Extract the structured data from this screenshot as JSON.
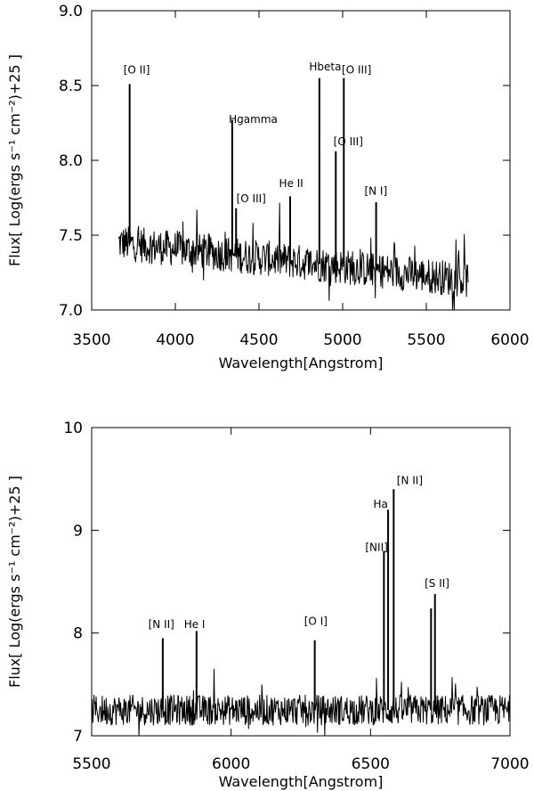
{
  "chart_data": [
    {
      "type": "line",
      "xlabel": "Wavelength[Angstrom]",
      "ylabel": "Flux[  Log(ergs s⁻¹ cm⁻²)+25  ]",
      "xlim": [
        3500,
        6000
      ],
      "ylim": [
        7.0,
        9.0
      ],
      "xticks": [
        "3500",
        "4000",
        "4500",
        "5000",
        "5500",
        "6000"
      ],
      "yticks": [
        "7.0",
        "7.5",
        "8.0",
        "8.5",
        "9.0"
      ],
      "continuum": {
        "x_start": 3660,
        "x_end": 5750,
        "level_start": 7.45,
        "level_end": 7.2,
        "noise": 0.12
      },
      "emission_lines": [
        {
          "label": "[O II]",
          "x": 3727,
          "peak": 8.51
        },
        {
          "label": "Hgamma",
          "x": 4340,
          "peak": 8.27
        },
        {
          "label": "[O III]",
          "x": 4363,
          "peak": 7.68
        },
        {
          "label": "He II",
          "x": 4686,
          "peak": 7.76
        },
        {
          "label": "Hbeta",
          "x": 4861,
          "peak": 8.55
        },
        {
          "label": "[O III]",
          "x": 4959,
          "peak": 8.06
        },
        {
          "label": "[O III]",
          "x": 5007,
          "peak": 8.55
        },
        {
          "label": "[N I]",
          "x": 5200,
          "peak": 7.72
        }
      ],
      "annotations": [
        {
          "text": "[O II]",
          "x": 3690,
          "y": 8.58
        },
        {
          "text": "Hgamma",
          "x": 4320,
          "y": 8.25
        },
        {
          "text": "[O III]",
          "x": 4365,
          "y": 7.72
        },
        {
          "text": "He II",
          "x": 4620,
          "y": 7.82
        },
        {
          "text": "Hbeta",
          "x": 4800,
          "y": 8.6
        },
        {
          "text": "[O III]",
          "x": 4995,
          "y": 8.58
        },
        {
          "text": "[O III]",
          "x": 4945,
          "y": 8.1
        },
        {
          "text": "[N I]",
          "x": 5130,
          "y": 7.77
        }
      ]
    },
    {
      "type": "line",
      "xlabel": "Wavelength[Angstrom]",
      "ylabel": "Flux[  Log(ergs s⁻¹ cm⁻²)+25  ]",
      "xlim": [
        5500,
        7000
      ],
      "ylim": [
        7,
        10
      ],
      "xticks": [
        "5500",
        "6000",
        "6500",
        "7000"
      ],
      "yticks": [
        "7",
        "8",
        "9",
        "10"
      ],
      "continuum": {
        "x_start": 5500,
        "x_end": 7000,
        "level_start": 7.25,
        "level_end": 7.25,
        "noise": 0.15
      },
      "emission_lines": [
        {
          "label": "[N II]",
          "x": 5755,
          "peak": 7.95
        },
        {
          "label": "He I",
          "x": 5876,
          "peak": 8.02
        },
        {
          "label": "[O I]",
          "x": 6300,
          "peak": 7.93
        },
        {
          "label": "[NII]",
          "x": 6548,
          "peak": 8.8
        },
        {
          "label": "Ha",
          "x": 6563,
          "peak": 9.2
        },
        {
          "label": "[N II]",
          "x": 6583,
          "peak": 9.4
        },
        {
          "label": "[S II]",
          "x": 6717,
          "peak": 8.24
        },
        {
          "label": "[S II]",
          "x": 6731,
          "peak": 8.38
        }
      ],
      "annotations": [
        {
          "text": "[N II]",
          "x": 5703,
          "y": 8.05
        },
        {
          "text": "He I",
          "x": 5831,
          "y": 8.05
        },
        {
          "text": "[O I]",
          "x": 6262,
          "y": 8.08
        },
        {
          "text": "Ha",
          "x": 6510,
          "y": 9.22
        },
        {
          "text": "[N II]",
          "x": 6594,
          "y": 9.45
        },
        {
          "text": "[NII]",
          "x": 6481,
          "y": 8.8
        },
        {
          "text": "[S II]",
          "x": 6694,
          "y": 8.45
        }
      ]
    }
  ]
}
